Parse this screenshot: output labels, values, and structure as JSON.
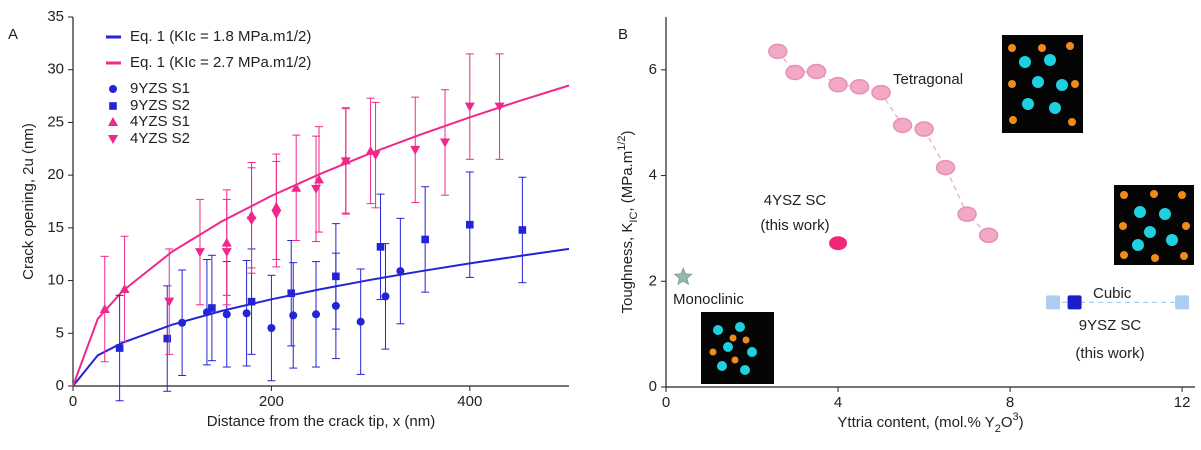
{
  "chart_data": [
    {
      "type": "scatter",
      "panel": "A",
      "xlabel": "Distance from the crack tip, x (nm)",
      "ylabel": "Crack opening, 2u (nm)",
      "xlim": [
        0,
        500
      ],
      "ylim": [
        0,
        35
      ],
      "xticks": [
        0,
        200,
        400
      ],
      "yticks": [
        0,
        5,
        10,
        15,
        20,
        25,
        30,
        35
      ],
      "legend": "upper left",
      "series": [
        {
          "name": "Eq. 1 (KIc = 1.8 MPa.m1/2)",
          "color": "#2323d8",
          "mode": "line",
          "x": [
            0,
            25,
            50,
            100,
            150,
            200,
            250,
            300,
            350,
            400,
            450,
            500
          ],
          "values": [
            0,
            2.91,
            4.11,
            5.81,
            7.12,
            8.22,
            9.19,
            10.07,
            10.88,
            11.63,
            12.33,
            13
          ]
        },
        {
          "name": "Eq. 1 (KIc = 2.7 MPa.m1/2)",
          "color": "#f0288c",
          "mode": "line",
          "x": [
            0,
            25,
            50,
            100,
            150,
            200,
            250,
            300,
            350,
            400,
            450,
            500
          ],
          "values": [
            0,
            6.37,
            9.01,
            12.75,
            15.61,
            18.03,
            20.15,
            22.08,
            23.84,
            25.49,
            27.04,
            28.5
          ]
        },
        {
          "name": "9YZS S1",
          "color": "#2323d8",
          "marker": "circle",
          "x": [
            110,
            135,
            155,
            175,
            200,
            222,
            245,
            265,
            290,
            315,
            330
          ],
          "values": [
            6.0,
            7.0,
            6.8,
            6.9,
            5.5,
            6.7,
            6.8,
            7.6,
            6.1,
            8.5,
            10.9
          ],
          "errors": [
            5,
            5,
            5,
            5,
            5,
            5,
            5,
            5,
            5,
            5,
            5
          ]
        },
        {
          "name": "9YZS S2",
          "color": "#2323d8",
          "marker": "square",
          "x": [
            47,
            95,
            140,
            180,
            220,
            265,
            310,
            355,
            400,
            453
          ],
          "values": [
            3.6,
            4.5,
            7.4,
            8.0,
            8.8,
            10.4,
            13.2,
            13.9,
            15.3,
            14.8
          ],
          "errors": [
            5,
            5,
            5,
            5,
            5,
            5,
            5,
            5,
            5,
            5
          ]
        },
        {
          "name": "4YZS S1",
          "color": "#f0288c",
          "marker": "triangle-up",
          "x": [
            32,
            52,
            155,
            180,
            205,
            225,
            248,
            275,
            300
          ],
          "values": [
            7.3,
            9.2,
            13.6,
            16.2,
            17.0,
            18.8,
            19.6,
            21.4,
            22.3
          ],
          "errors": [
            5,
            5,
            5,
            5,
            5,
            5,
            5,
            5,
            5
          ]
        },
        {
          "name": "4YZS S2",
          "color": "#f0288c",
          "marker": "triangle-down",
          "x": [
            97,
            128,
            155,
            180,
            205,
            245,
            275,
            305,
            345,
            375,
            400,
            430
          ],
          "values": [
            8.0,
            12.7,
            12.7,
            15.7,
            16.3,
            18.7,
            21.3,
            21.9,
            22.4,
            23.1,
            26.5,
            26.5
          ],
          "errors": [
            5,
            5,
            5,
            5,
            5,
            5,
            5,
            5,
            5,
            5,
            5,
            5
          ]
        }
      ]
    },
    {
      "type": "scatter",
      "panel": "B",
      "xlabel": [
        "Yttria content, (mol.% Y",
        "2",
        "O",
        "3",
        ")"
      ],
      "ylabel": [
        "Toughness, K",
        "IC",
        ", (MPa.m",
        "1/2",
        ")"
      ],
      "xlim": [
        0,
        12.3
      ],
      "ylim": [
        0,
        7
      ],
      "xticks": [
        0,
        4,
        8,
        12
      ],
      "yticks": [
        0,
        2,
        4,
        6
      ],
      "series": [
        {
          "name": "Tetragonal",
          "color": "#f2a9c6",
          "marker": "ellipse",
          "dashed_line": true,
          "x": [
            2.6,
            3.0,
            3.5,
            4.0,
            4.5,
            5.0,
            5.5,
            6.0,
            6.5,
            7.0,
            7.5
          ],
          "values": [
            6.35,
            5.95,
            5.97,
            5.72,
            5.68,
            5.57,
            4.95,
            4.88,
            4.15,
            3.27,
            2.87
          ]
        },
        {
          "name": "4YSZ SC",
          "note": "(this work)",
          "color": "#f0287a",
          "marker": "ellipse",
          "x": [
            4.0
          ],
          "values": [
            2.72
          ]
        },
        {
          "name": "Monoclinic",
          "color": "#93b8aa",
          "marker": "star",
          "x": [
            0.4
          ],
          "values": [
            2.08
          ]
        },
        {
          "name": "Cubic",
          "color": "#aacdf0",
          "marker": "square",
          "dashed_line": true,
          "x": [
            9.0,
            12.0
          ],
          "values": [
            1.6,
            1.6
          ]
        },
        {
          "name": "9YSZ SC",
          "note": "(this work)",
          "color": "#1c1cc8",
          "marker": "square",
          "x": [
            9.5
          ],
          "values": [
            1.6
          ]
        }
      ]
    }
  ]
}
